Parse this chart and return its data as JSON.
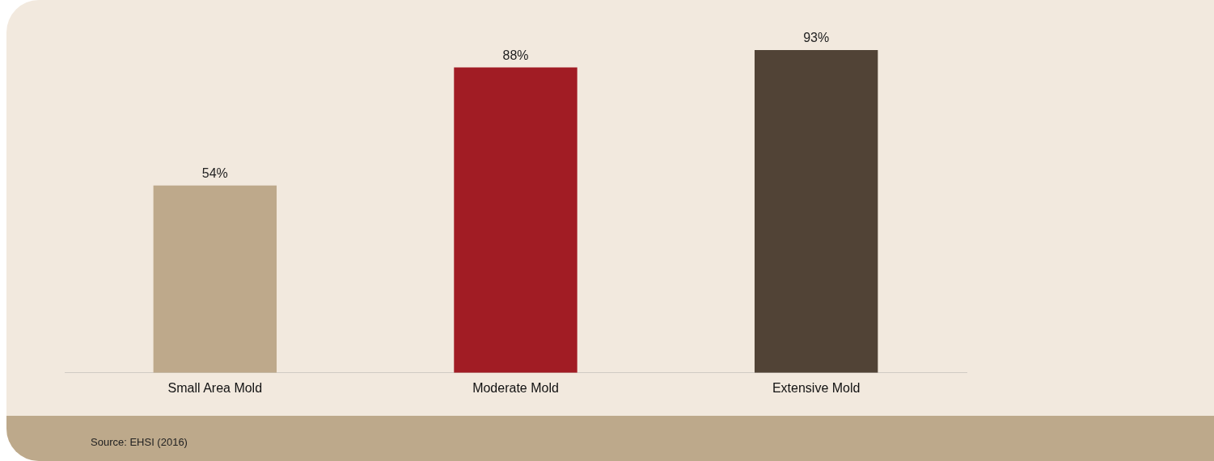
{
  "chart_data": {
    "type": "bar",
    "categories": [
      "Small Area Mold",
      "Moderate Mold",
      "Extensive Mold"
    ],
    "values": [
      54,
      88,
      93
    ],
    "colors": [
      "#bea98b",
      "#a11c24",
      "#514336"
    ],
    "value_labels": [
      "54%",
      "88%",
      "93%"
    ],
    "tick_labels": "x",
    "grid": false,
    "legend": false,
    "annotations": [
      "Source: EHSI (2016)"
    ]
  }
}
